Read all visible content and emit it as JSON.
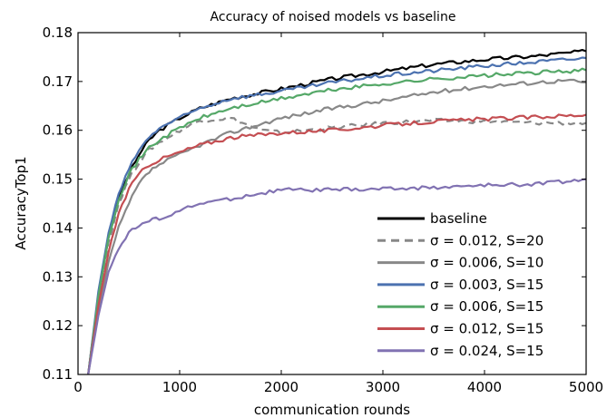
{
  "chart_data": {
    "type": "line",
    "title": "Accuracy of noised models vs baseline",
    "xlabel": "communication rounds",
    "ylabel": "AccuracyTop1",
    "xlim": [
      0,
      5000
    ],
    "ylim": [
      0.11,
      0.18
    ],
    "xticks": [
      0,
      1000,
      2000,
      3000,
      4000,
      5000
    ],
    "yticks": [
      0.11,
      0.12,
      0.13,
      0.14,
      0.15,
      0.16,
      0.17,
      0.18
    ],
    "ytick_labels": [
      "0.11",
      "0.12",
      "0.13",
      "0.14",
      "0.15",
      "0.16",
      "0.17",
      "0.18"
    ],
    "grid": false,
    "legend_position": "lower-right",
    "series": [
      {
        "name": "baseline",
        "color": "#000000",
        "dash": "solid",
        "x": [
          100,
          200,
          300,
          400,
          500,
          600,
          700,
          800,
          1000,
          1200,
          1500,
          2000,
          2500,
          3000,
          3500,
          4000,
          4500,
          5000
        ],
        "y": [
          0.11,
          0.126,
          0.138,
          0.146,
          0.151,
          0.155,
          0.158,
          0.16,
          0.1625,
          0.1645,
          0.1665,
          0.1685,
          0.1705,
          0.172,
          0.1735,
          0.1745,
          0.1752,
          0.1762
        ]
      },
      {
        "name": "σ = 0.012, S=20",
        "color": "#888888",
        "dash": "dashed",
        "x": [
          100,
          200,
          300,
          400,
          500,
          600,
          700,
          800,
          1000,
          1200,
          1500,
          1800,
          2000,
          2500,
          3000,
          3500,
          4000,
          4500,
          5000
        ],
        "y": [
          0.11,
          0.125,
          0.137,
          0.145,
          0.15,
          0.1535,
          0.156,
          0.1575,
          0.16,
          0.162,
          0.1625,
          0.16,
          0.1595,
          0.1605,
          0.1615,
          0.162,
          0.1618,
          0.1615,
          0.1615
        ]
      },
      {
        "name": "σ = 0.006, S=10",
        "color": "#888888",
        "dash": "solid",
        "x": [
          100,
          200,
          300,
          400,
          500,
          600,
          700,
          800,
          1000,
          1200,
          1500,
          2000,
          2500,
          3000,
          3500,
          4000,
          4500,
          4800,
          5000
        ],
        "y": [
          0.11,
          0.123,
          0.133,
          0.14,
          0.145,
          0.149,
          0.1515,
          0.153,
          0.155,
          0.157,
          0.1595,
          0.1625,
          0.1645,
          0.166,
          0.1678,
          0.169,
          0.1698,
          0.1702,
          0.1698
        ]
      },
      {
        "name": "σ = 0.003, S=15",
        "color": "#4c72b0",
        "dash": "solid",
        "x": [
          100,
          200,
          300,
          400,
          500,
          600,
          700,
          800,
          1000,
          1200,
          1500,
          2000,
          2500,
          3000,
          3500,
          4000,
          4500,
          5000
        ],
        "y": [
          0.11,
          0.127,
          0.139,
          0.147,
          0.152,
          0.156,
          0.1585,
          0.1605,
          0.1625,
          0.1645,
          0.1665,
          0.168,
          0.1698,
          0.1712,
          0.1722,
          0.1732,
          0.174,
          0.1748
        ]
      },
      {
        "name": "σ = 0.006, S=15",
        "color": "#55a868",
        "dash": "solid",
        "x": [
          100,
          200,
          300,
          400,
          500,
          600,
          700,
          800,
          1000,
          1200,
          1500,
          2000,
          2500,
          3000,
          3500,
          4000,
          4500,
          5000
        ],
        "y": [
          0.11,
          0.126,
          0.138,
          0.146,
          0.151,
          0.154,
          0.1565,
          0.158,
          0.1605,
          0.1625,
          0.1645,
          0.1665,
          0.1683,
          0.1695,
          0.1705,
          0.1712,
          0.1718,
          0.1723
        ]
      },
      {
        "name": "σ = 0.012, S=15",
        "color": "#c44e52",
        "dash": "solid",
        "x": [
          100,
          200,
          300,
          400,
          500,
          600,
          700,
          800,
          1000,
          1200,
          1500,
          2000,
          2500,
          3000,
          3500,
          4000,
          4500,
          5000
        ],
        "y": [
          0.11,
          0.124,
          0.135,
          0.143,
          0.148,
          0.151,
          0.153,
          0.154,
          0.1555,
          0.157,
          0.1585,
          0.1595,
          0.16,
          0.161,
          0.1618,
          0.1623,
          0.1627,
          0.1632
        ]
      },
      {
        "name": "σ = 0.024, S=15",
        "color": "#8172b2",
        "dash": "solid",
        "x": [
          100,
          200,
          300,
          400,
          500,
          600,
          700,
          800,
          1000,
          1200,
          1500,
          2000,
          2500,
          3000,
          3500,
          4000,
          4500,
          5000
        ],
        "y": [
          0.11,
          0.122,
          0.131,
          0.136,
          0.139,
          0.1405,
          0.1415,
          0.142,
          0.1435,
          0.145,
          0.146,
          0.1478,
          0.1478,
          0.148,
          0.1483,
          0.1487,
          0.149,
          0.15
        ]
      }
    ]
  }
}
